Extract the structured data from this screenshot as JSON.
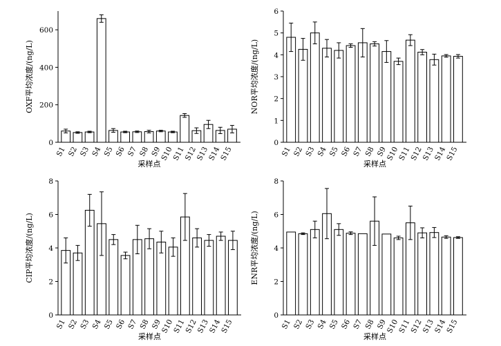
{
  "chart_data": [
    {
      "type": "bar",
      "categories": [
        "S1",
        "S2",
        "S3",
        "S4",
        "S5",
        "S6",
        "S7",
        "S8",
        "S9",
        "S10",
        "S11",
        "S12",
        "S13",
        "S14",
        "S15"
      ],
      "values": [
        60,
        52,
        55,
        660,
        63,
        55,
        56,
        57,
        60,
        55,
        143,
        62,
        95,
        63,
        70
      ],
      "errors": [
        10,
        4,
        4,
        20,
        10,
        4,
        4,
        7,
        4,
        4,
        10,
        15,
        22,
        17,
        20
      ],
      "xlabel": "采样点",
      "ylabel": "OXF平均浓度/(ng/L)",
      "ylim": [
        0,
        700
      ],
      "yticks": [
        0,
        200,
        400,
        600
      ],
      "grid": false
    },
    {
      "type": "bar",
      "categories": [
        "S1",
        "S2",
        "S3",
        "S4",
        "S5",
        "S6",
        "S7",
        "S8",
        "S9",
        "S10",
        "S11",
        "S12",
        "S13",
        "S14",
        "S15"
      ],
      "values": [
        4.8,
        4.25,
        5.0,
        4.3,
        4.2,
        4.42,
        4.55,
        4.5,
        4.15,
        3.7,
        4.67,
        4.12,
        3.78,
        3.95,
        3.93
      ],
      "errors": [
        0.65,
        0.5,
        0.5,
        0.4,
        0.35,
        0.08,
        0.65,
        0.1,
        0.5,
        0.15,
        0.25,
        0.12,
        0.25,
        0.06,
        0.08
      ],
      "xlabel": "采样点",
      "ylabel": "NOR平均浓度/(ng/L)",
      "ylim": [
        0,
        6
      ],
      "yticks": [
        0,
        1,
        2,
        3,
        4,
        5,
        6
      ],
      "grid": false
    },
    {
      "type": "bar",
      "categories": [
        "S1",
        "S2",
        "S3",
        "S4",
        "S5",
        "S6",
        "S7",
        "S8",
        "S9",
        "S10",
        "S11",
        "S12",
        "S13",
        "S14",
        "S15"
      ],
      "values": [
        3.85,
        3.7,
        6.25,
        5.45,
        4.5,
        3.55,
        4.5,
        4.55,
        4.35,
        4.05,
        5.85,
        4.6,
        4.45,
        4.7,
        4.45
      ],
      "errors": [
        0.75,
        0.45,
        0.95,
        1.9,
        0.3,
        0.2,
        0.85,
        0.6,
        0.65,
        0.55,
        1.4,
        0.55,
        0.35,
        0.25,
        0.55
      ],
      "xlabel": "采样点",
      "ylabel": "CIP平均浓度/(ng/L)",
      "ylim": [
        0,
        8
      ],
      "yticks": [
        0,
        2,
        4,
        6,
        8
      ],
      "grid": false
    },
    {
      "type": "bar",
      "categories": [
        "S1",
        "S2",
        "S3",
        "S4",
        "S5",
        "S6",
        "S7",
        "S8",
        "S9",
        "S10",
        "S11",
        "S12",
        "S13",
        "S14",
        "S15"
      ],
      "values": [
        4.95,
        4.85,
        5.1,
        6.05,
        5.1,
        4.88,
        4.85,
        5.6,
        4.83,
        4.6,
        5.5,
        4.9,
        4.92,
        4.65,
        4.62
      ],
      "errors": [
        0.0,
        0.05,
        0.5,
        1.5,
        0.35,
        0.08,
        0.0,
        1.45,
        0.0,
        0.1,
        1.0,
        0.3,
        0.3,
        0.08,
        0.05
      ],
      "xlabel": "采样点",
      "ylabel": "ENR平均浓度/(ng/L)",
      "ylim": [
        0,
        8
      ],
      "yticks": [
        0,
        2,
        4,
        6,
        8
      ],
      "grid": false
    }
  ]
}
